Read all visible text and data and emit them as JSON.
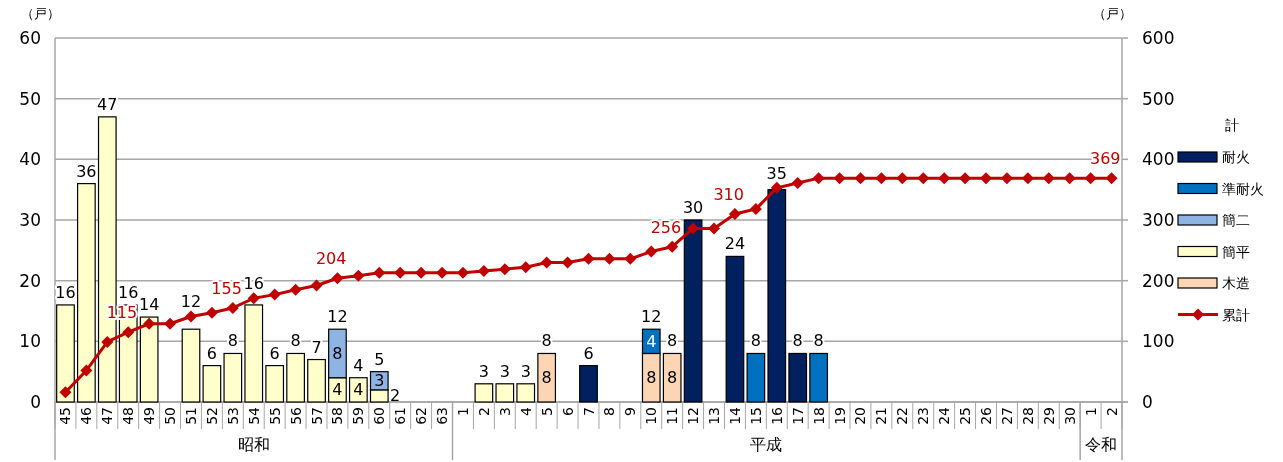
{
  "chart_data": {
    "type": "bar",
    "stacked": true,
    "categories": [
      "45",
      "46",
      "47",
      "48",
      "49",
      "50",
      "51",
      "52",
      "53",
      "54",
      "55",
      "56",
      "57",
      "58",
      "59",
      "60",
      "61",
      "62",
      "63",
      "1",
      "2",
      "3",
      "4",
      "5",
      "6",
      "7",
      "8",
      "9",
      "10",
      "11",
      "12",
      "13",
      "14",
      "15",
      "16",
      "17",
      "18",
      "19",
      "20",
      "21",
      "22",
      "23",
      "24",
      "25",
      "26",
      "27",
      "28",
      "29",
      "30",
      "1",
      "2"
    ],
    "series": [
      {
        "name": "木造",
        "color": "#fcd5b5",
        "values": [
          null,
          null,
          null,
          null,
          null,
          null,
          null,
          null,
          null,
          null,
          null,
          null,
          null,
          null,
          null,
          null,
          null,
          null,
          null,
          null,
          null,
          null,
          null,
          8,
          null,
          null,
          null,
          null,
          8,
          8,
          null,
          null,
          null,
          null,
          null,
          null,
          null,
          null,
          null,
          null,
          null,
          null,
          null,
          null,
          null,
          null,
          null,
          null,
          null,
          null,
          null
        ],
        "value_labels": [
          null,
          null,
          null,
          null,
          null,
          null,
          null,
          null,
          null,
          null,
          null,
          null,
          null,
          null,
          null,
          null,
          null,
          null,
          null,
          null,
          null,
          null,
          null,
          "8",
          null,
          null,
          null,
          null,
          "8",
          "8",
          null,
          null,
          null,
          null,
          null,
          null,
          null,
          null,
          null,
          null,
          null,
          null,
          null,
          null,
          null,
          null,
          null,
          null,
          null,
          null,
          null
        ]
      },
      {
        "name": "簡平",
        "color": "#ffffcc",
        "values": [
          16,
          36,
          47,
          16,
          14,
          null,
          12,
          6,
          8,
          16,
          6,
          8,
          7,
          4,
          4,
          2,
          null,
          null,
          null,
          null,
          3,
          3,
          3,
          null,
          null,
          null,
          null,
          null,
          null,
          null,
          null,
          null,
          null,
          null,
          null,
          null,
          null,
          null,
          null,
          null,
          null,
          null,
          null,
          null,
          null,
          null,
          null,
          null,
          null,
          null,
          null
        ],
        "value_labels": [
          null,
          null,
          null,
          null,
          null,
          null,
          null,
          null,
          null,
          null,
          null,
          null,
          null,
          "4",
          "4",
          "2",
          null,
          null,
          null,
          null,
          null,
          null,
          null,
          null,
          null,
          null,
          null,
          null,
          null,
          null,
          null,
          null,
          null,
          null,
          null,
          null,
          null,
          null,
          null,
          null,
          null,
          null,
          null,
          null,
          null,
          null,
          null,
          null,
          null,
          null,
          null
        ]
      },
      {
        "name": "簡二",
        "color": "#8db4e2",
        "values": [
          null,
          null,
          null,
          null,
          null,
          null,
          null,
          null,
          null,
          null,
          null,
          null,
          null,
          8,
          null,
          3,
          null,
          null,
          null,
          null,
          null,
          null,
          null,
          null,
          null,
          null,
          null,
          null,
          null,
          null,
          null,
          null,
          null,
          null,
          null,
          null,
          null,
          null,
          null,
          null,
          null,
          null,
          null,
          null,
          null,
          null,
          null,
          null,
          null,
          null,
          null
        ],
        "value_labels": [
          null,
          null,
          null,
          null,
          null,
          null,
          null,
          null,
          null,
          null,
          null,
          null,
          null,
          "8",
          null,
          "3",
          null,
          null,
          null,
          null,
          null,
          null,
          null,
          null,
          null,
          null,
          null,
          null,
          null,
          null,
          null,
          null,
          null,
          null,
          null,
          null,
          null,
          null,
          null,
          null,
          null,
          null,
          null,
          null,
          null,
          null,
          null,
          null,
          null,
          null,
          null
        ]
      },
      {
        "name": "準耐火",
        "color": "#0070c0",
        "values": [
          null,
          null,
          null,
          null,
          null,
          null,
          null,
          null,
          null,
          null,
          null,
          null,
          null,
          null,
          null,
          null,
          null,
          null,
          null,
          null,
          null,
          null,
          null,
          null,
          null,
          null,
          null,
          null,
          4,
          null,
          null,
          null,
          null,
          8,
          null,
          null,
          8,
          null,
          null,
          null,
          null,
          null,
          null,
          null,
          null,
          null,
          null,
          null,
          null,
          null,
          null
        ],
        "value_labels": [
          null,
          null,
          null,
          null,
          null,
          null,
          null,
          null,
          null,
          null,
          null,
          null,
          null,
          null,
          null,
          null,
          null,
          null,
          null,
          null,
          null,
          null,
          null,
          null,
          null,
          null,
          null,
          null,
          "4",
          null,
          null,
          null,
          null,
          null,
          null,
          null,
          null,
          null,
          null,
          null,
          null,
          null,
          null,
          null,
          null,
          null,
          null,
          null,
          null,
          null,
          null
        ]
      },
      {
        "name": "耐火",
        "color": "#002060",
        "values": [
          null,
          null,
          null,
          null,
          null,
          null,
          null,
          null,
          null,
          null,
          null,
          null,
          null,
          null,
          null,
          null,
          null,
          null,
          null,
          null,
          null,
          null,
          null,
          null,
          null,
          6,
          null,
          null,
          null,
          null,
          30,
          null,
          24,
          null,
          35,
          8,
          null,
          null,
          null,
          null,
          null,
          null,
          null,
          null,
          null,
          null,
          null,
          null,
          null,
          null,
          null
        ]
      },
      {
        "name": "累計",
        "type": "line",
        "axis": "y2",
        "color": "#c00000",
        "values": [
          16,
          52,
          99,
          115,
          129,
          129,
          141,
          147,
          155,
          171,
          177,
          185,
          192,
          204,
          208,
          213,
          213,
          213,
          213,
          213,
          216,
          219,
          222,
          230,
          230,
          236,
          236,
          236,
          248,
          256,
          286,
          286,
          310,
          318,
          353,
          361,
          369,
          369,
          369,
          369,
          369,
          369,
          369,
          369,
          369,
          369,
          369,
          369,
          369,
          369,
          369
        ],
        "value_labels": [
          null,
          null,
          null,
          "115",
          null,
          null,
          null,
          null,
          "155",
          null,
          null,
          null,
          null,
          "204",
          null,
          null,
          null,
          null,
          null,
          null,
          null,
          null,
          null,
          null,
          null,
          null,
          null,
          null,
          null,
          "256",
          null,
          null,
          "310",
          null,
          null,
          null,
          null,
          null,
          null,
          null,
          null,
          null,
          null,
          null,
          null,
          null,
          null,
          null,
          null,
          null,
          "369"
        ]
      }
    ],
    "totals": [
      "16",
      "36",
      "47",
      "16",
      "14",
      null,
      "12",
      "6",
      "8",
      "16",
      "6",
      "8",
      "7",
      "12",
      "4",
      "5",
      null,
      null,
      null,
      null,
      "3",
      "3",
      "3",
      "8",
      null,
      "6",
      null,
      null,
      "12",
      "8",
      "30",
      null,
      "24",
      "8",
      "35",
      "8",
      "8",
      null,
      null,
      null,
      null,
      null,
      null,
      null,
      null,
      null,
      null,
      null,
      null,
      null,
      null
    ],
    "ylim": [
      0,
      60
    ],
    "yticks": [
      0,
      10,
      20,
      30,
      40,
      50,
      60
    ],
    "y2lim": [
      0,
      600
    ],
    "y2ticks": [
      0,
      100,
      200,
      300,
      400,
      500,
      600
    ],
    "ylabel": "（戸）",
    "y2label": "（戸）",
    "legend": "right",
    "legend_title": "計",
    "grid": "y",
    "marker": "diamond",
    "annotations": [
      "昭和",
      "平成",
      "令和"
    ]
  }
}
